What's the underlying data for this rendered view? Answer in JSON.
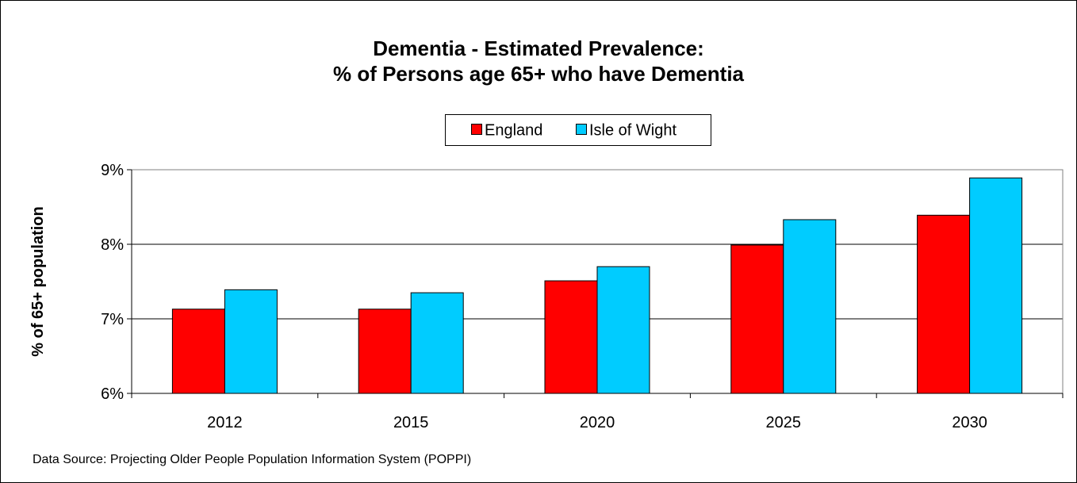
{
  "chart_data": {
    "type": "bar",
    "title": "Dementia - Estimated Prevalence:",
    "subtitle": "% of Persons age 65+ who have Dementia",
    "xlabel": "",
    "ylabel": "% of 65+ population",
    "categories": [
      "2012",
      "2015",
      "2020",
      "2025",
      "2030"
    ],
    "series": [
      {
        "name": "England",
        "color": "#ff0000",
        "values": [
          7.13,
          7.13,
          7.51,
          7.99,
          8.39
        ]
      },
      {
        "name": "Isle of Wight",
        "color": "#00ccff",
        "values": [
          7.39,
          7.35,
          7.7,
          8.33,
          8.89
        ]
      }
    ],
    "ylim": [
      6,
      9
    ],
    "yticks": [
      6,
      7,
      8,
      9
    ],
    "ytick_labels": [
      "6%",
      "7%",
      "8%",
      "9%"
    ],
    "grid": true,
    "legend_position": "top-center"
  },
  "footer": {
    "source": "Data Source: Projecting Older People Population Information System (POPPI)"
  }
}
